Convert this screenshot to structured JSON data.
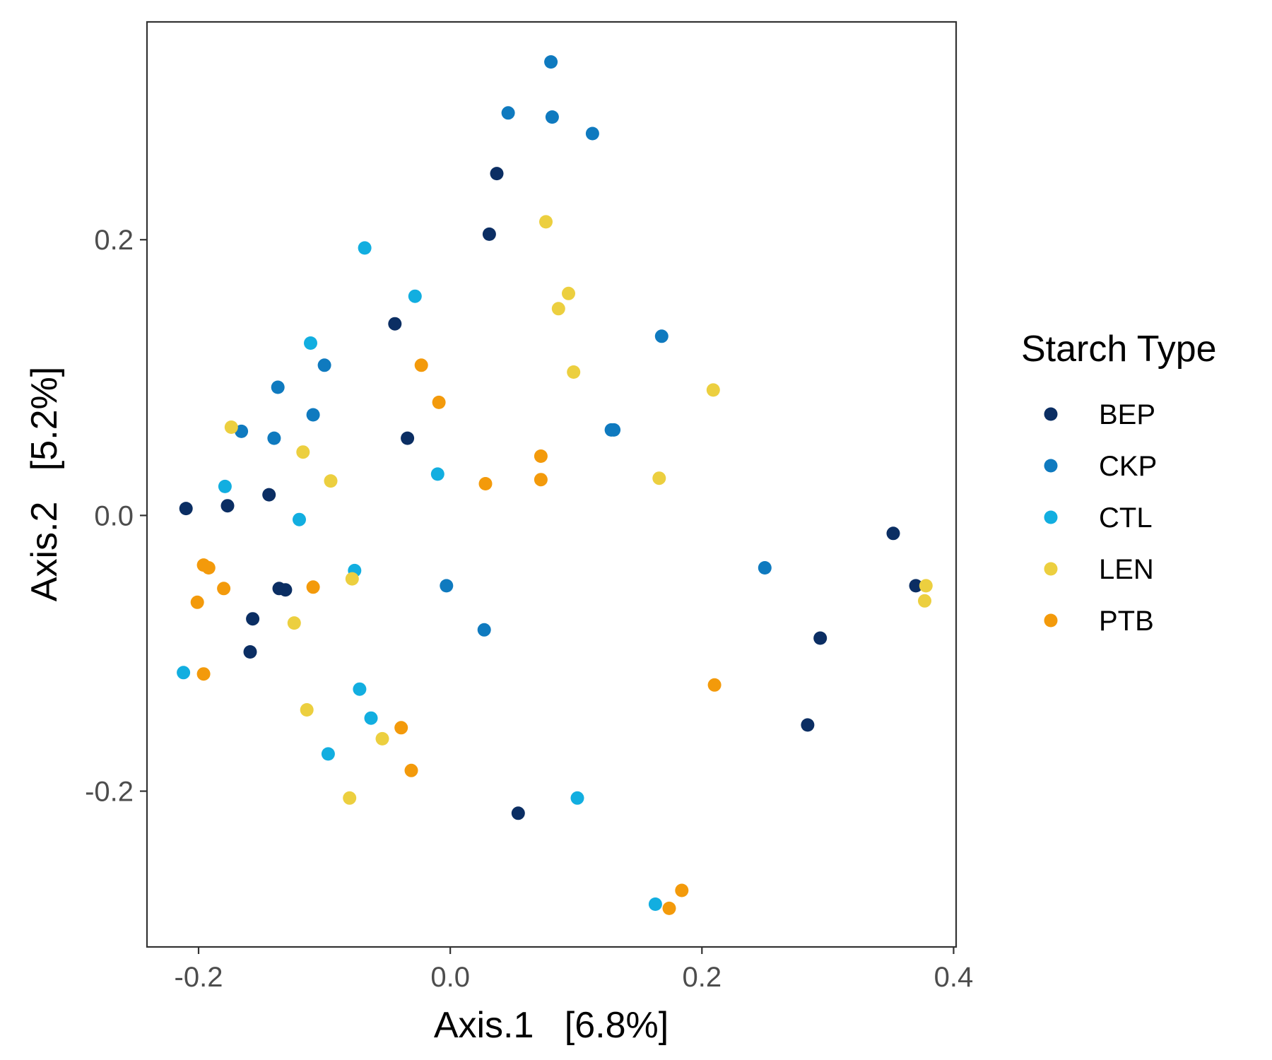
{
  "chart_data": {
    "type": "scatter",
    "title": "",
    "xlabel": "Axis.1   [6.8%]",
    "ylabel": "Axis.2   [5.2%]",
    "xlim": [
      -0.241,
      0.402
    ],
    "ylim": [
      -0.313,
      0.358
    ],
    "x_ticks": [
      -0.2,
      0.0,
      0.2,
      0.4
    ],
    "x_tick_labels": [
      "-0.2",
      "0.0",
      "0.2",
      "0.4"
    ],
    "y_ticks": [
      -0.2,
      0.0,
      0.2
    ],
    "y_tick_labels": [
      "-0.2",
      "0.0",
      "0.2"
    ],
    "grid": false,
    "legend": {
      "title": "Starch Type",
      "position": "right"
    },
    "series": [
      {
        "name": "BEP",
        "color": "#0b2e63",
        "points": [
          [
            -0.21,
            0.005
          ],
          [
            -0.177,
            0.007
          ],
          [
            -0.144,
            0.015
          ],
          [
            -0.157,
            -0.075
          ],
          [
            -0.159,
            -0.099
          ],
          [
            -0.136,
            -0.053
          ],
          [
            -0.131,
            -0.054
          ],
          [
            -0.044,
            0.139
          ],
          [
            -0.034,
            0.056
          ],
          [
            0.031,
            0.204
          ],
          [
            0.037,
            0.248
          ],
          [
            0.054,
            -0.216
          ],
          [
            0.294,
            -0.089
          ],
          [
            0.284,
            -0.152
          ],
          [
            0.352,
            -0.013
          ],
          [
            0.37,
            -0.051
          ]
        ]
      },
      {
        "name": "CKP",
        "color": "#0f7abf",
        "points": [
          [
            0.08,
            0.329
          ],
          [
            0.046,
            0.292
          ],
          [
            0.081,
            0.289
          ],
          [
            0.113,
            0.277
          ],
          [
            0.168,
            0.13
          ],
          [
            0.128,
            0.062
          ],
          [
            0.13,
            0.062
          ],
          [
            0.25,
            -0.038
          ],
          [
            -0.003,
            -0.051
          ],
          [
            0.027,
            -0.083
          ],
          [
            -0.1,
            0.109
          ],
          [
            -0.137,
            0.093
          ],
          [
            -0.109,
            0.073
          ],
          [
            -0.14,
            0.056
          ],
          [
            -0.166,
            0.061
          ]
        ]
      },
      {
        "name": "CTL",
        "color": "#12aee0",
        "points": [
          [
            -0.068,
            0.194
          ],
          [
            -0.028,
            0.159
          ],
          [
            -0.111,
            0.125
          ],
          [
            -0.179,
            0.021
          ],
          [
            -0.12,
            -0.003
          ],
          [
            -0.01,
            0.03
          ],
          [
            -0.076,
            -0.04
          ],
          [
            -0.212,
            -0.114
          ],
          [
            -0.072,
            -0.126
          ],
          [
            -0.063,
            -0.147
          ],
          [
            -0.097,
            -0.173
          ],
          [
            0.101,
            -0.205
          ],
          [
            0.163,
            -0.282
          ]
        ]
      },
      {
        "name": "LEN",
        "color": "#eccf3f",
        "points": [
          [
            0.076,
            0.213
          ],
          [
            0.094,
            0.161
          ],
          [
            0.086,
            0.15
          ],
          [
            0.098,
            0.104
          ],
          [
            0.209,
            0.091
          ],
          [
            0.166,
            0.027
          ],
          [
            -0.174,
            0.064
          ],
          [
            -0.117,
            0.046
          ],
          [
            -0.095,
            0.025
          ],
          [
            -0.078,
            -0.046
          ],
          [
            -0.124,
            -0.078
          ],
          [
            -0.114,
            -0.141
          ],
          [
            -0.054,
            -0.162
          ],
          [
            -0.08,
            -0.205
          ],
          [
            0.378,
            -0.051
          ],
          [
            0.377,
            -0.062
          ]
        ]
      },
      {
        "name": "PTB",
        "color": "#f39a0b",
        "points": [
          [
            -0.023,
            0.109
          ],
          [
            -0.009,
            0.082
          ],
          [
            0.028,
            0.023
          ],
          [
            0.072,
            0.043
          ],
          [
            0.072,
            0.026
          ],
          [
            -0.196,
            -0.036
          ],
          [
            -0.192,
            -0.038
          ],
          [
            -0.18,
            -0.053
          ],
          [
            -0.201,
            -0.063
          ],
          [
            -0.109,
            -0.052
          ],
          [
            -0.196,
            -0.115
          ],
          [
            -0.039,
            -0.154
          ],
          [
            -0.031,
            -0.185
          ],
          [
            0.21,
            -0.123
          ],
          [
            0.184,
            -0.272
          ],
          [
            0.174,
            -0.285
          ]
        ]
      }
    ]
  }
}
